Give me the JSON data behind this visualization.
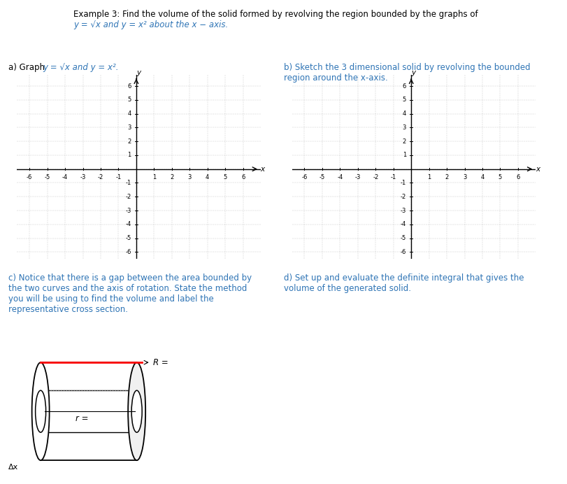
{
  "title_line1": "Example 3: Find the volume of the solid formed by revolving the region bounded by the graphs of",
  "title_line2_black": "y = √x and y = x² about the x − axis.",
  "label_a_black": "a) Graph ",
  "label_a_blue": "y = √x and y = x².",
  "label_b": "b) Sketch the 3 dimensional solid by revolving the bounded\nregion around the x-axis.",
  "label_c": "c) Notice that there is a gap between the area bounded by\nthe two curves and the axis of rotation. State the method\nyou will be using to find the volume and label the\nrepresentative cross section.",
  "label_d": "d) Set up and evaluate the definite integral that gives the\nvolume of the generated solid.",
  "R_label": "R =",
  "r_label": "r =",
  "Ax_label": "Δx",
  "blue_color": "#2e74b5",
  "black_text": "#000000",
  "bg_color": "#ffffff",
  "grid_range": 6
}
